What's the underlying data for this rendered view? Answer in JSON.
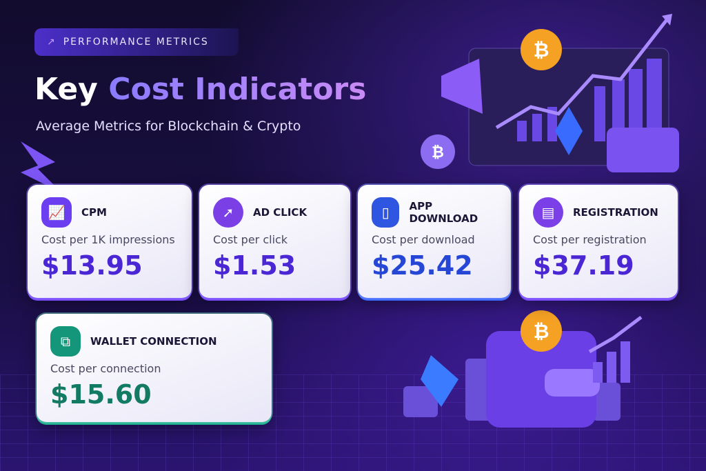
{
  "badge": {
    "label": "PERFORMANCE METRICS",
    "icon": "trending-chart-icon"
  },
  "title": {
    "part1": "Key",
    "part2": "Cost Indicators"
  },
  "subtitle": "Average Metrics for Blockchain & Crypto",
  "cards": [
    {
      "name": "CPM",
      "desc": "Cost per 1K impressions",
      "value": "$13.95",
      "icon": "presentation-chart-icon",
      "color": "#6b3ff0"
    },
    {
      "name": "AD CLICK",
      "desc": "Cost per click",
      "value": "$1.53",
      "icon": "cursor-click-icon",
      "color": "#7a40e6"
    },
    {
      "name": "APP DOWNLOAD",
      "desc": "Cost per download",
      "value": "$25.42",
      "icon": "file-icon",
      "color": "#2f56e0"
    },
    {
      "name": "REGISTRATION",
      "desc": "Cost per registration",
      "value": "$37.19",
      "icon": "form-icon",
      "color": "#7a3fe6"
    },
    {
      "name": "WALLET CONNECTION",
      "desc": "Cost per connection",
      "value": "$15.60",
      "icon": "wallet-cards-icon",
      "color": "#13967a"
    }
  ],
  "colors": {
    "value_purple": "#4a26d4",
    "value_blue": "#2646d6",
    "value_green": "#137a63"
  }
}
